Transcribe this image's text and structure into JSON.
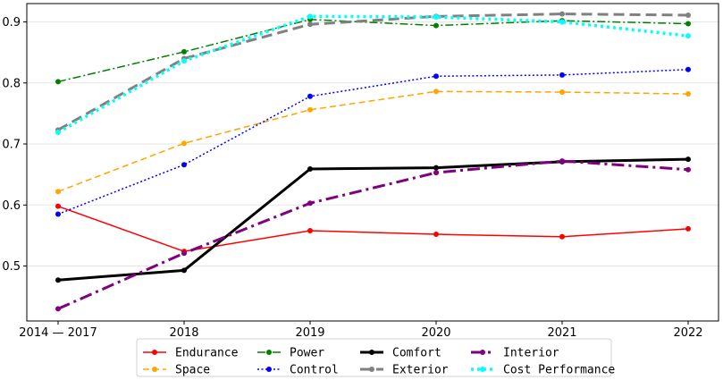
{
  "chart_data": {
    "type": "line",
    "categories": [
      "2014 — 2017",
      "2018",
      "2019",
      "2020",
      "2021",
      "2022"
    ],
    "ylim": [
      0.41,
      0.93
    ],
    "yticks": [
      "0.5",
      "0.6",
      "0.7",
      "0.8",
      "0.9"
    ],
    "ytick_values": [
      0.5,
      0.6,
      0.7,
      0.8,
      0.9
    ],
    "grid": "horizontal",
    "legend_position": "bottom",
    "series": [
      {
        "name": "Endurance",
        "color": "#ff0000",
        "style": "solid",
        "values": [
          0.598,
          0.524,
          0.558,
          0.552,
          0.548,
          0.561
        ]
      },
      {
        "name": "Space",
        "color": "#ffa500",
        "style": "dashed",
        "values": [
          0.622,
          0.701,
          0.756,
          0.786,
          0.785,
          0.782
        ]
      },
      {
        "name": "Power",
        "color": "#008000",
        "style": "dashdot",
        "values": [
          0.802,
          0.851,
          0.904,
          0.894,
          0.902,
          0.897
        ]
      },
      {
        "name": "Control",
        "color": "#0000ff",
        "style": "dotted",
        "values": [
          0.585,
          0.666,
          0.778,
          0.811,
          0.813,
          0.822
        ]
      },
      {
        "name": "Comfort",
        "color": "#000000",
        "style": "solid-thick",
        "values": [
          0.477,
          0.493,
          0.659,
          0.661,
          0.671,
          0.675
        ]
      },
      {
        "name": "Exterior",
        "color": "#808080",
        "style": "dashed-thick",
        "values": [
          0.723,
          0.84,
          0.896,
          0.909,
          0.913,
          0.911
        ]
      },
      {
        "name": "Interior",
        "color": "#800080",
        "style": "dashdot-thick",
        "values": [
          0.43,
          0.521,
          0.603,
          0.653,
          0.672,
          0.658
        ]
      },
      {
        "name": "Cost Performance",
        "color": "#00ffff",
        "style": "dotted-thick",
        "values": [
          0.719,
          0.836,
          0.909,
          0.908,
          0.9,
          0.877
        ]
      }
    ]
  }
}
